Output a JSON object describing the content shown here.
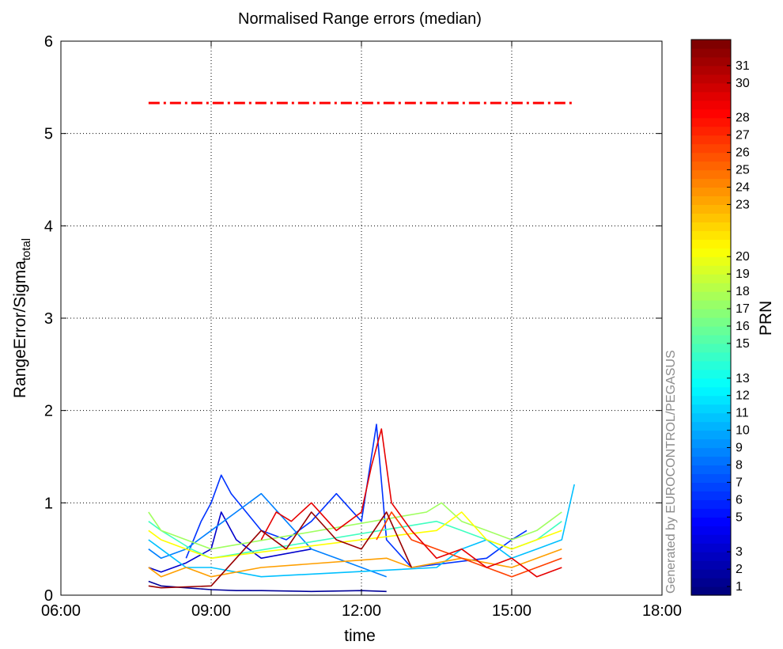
{
  "chart_data": {
    "type": "line",
    "title": "Normalised Range errors (median)",
    "xlabel": "time",
    "ylabel": "RangeError/Sigma",
    "ylabel_subscript": "total",
    "x_unit": "hours",
    "xlim": [
      6,
      18
    ],
    "ylim": [
      0,
      6
    ],
    "xticks": [
      6,
      9,
      12,
      15,
      18
    ],
    "xtick_labels": [
      "06:00",
      "09:00",
      "12:00",
      "15:00",
      "18:00"
    ],
    "yticks": [
      0,
      1,
      2,
      3,
      4,
      5,
      6
    ],
    "ytick_labels": [
      "0",
      "1",
      "2",
      "3",
      "4",
      "5",
      "6"
    ],
    "grid": true,
    "threshold_line": {
      "x": [
        7.75,
        16.25
      ],
      "y": 5.33,
      "color": "#ff0000",
      "style": "dash-dot"
    },
    "colorbar": {
      "label": "PRN",
      "colormap": "jet",
      "range": [
        0.5,
        32.5
      ],
      "tick_labels": [
        "1",
        "2",
        "3",
        "5",
        "6",
        "7",
        "8",
        "9",
        "10",
        "11",
        "12",
        "13",
        "15",
        "16",
        "17",
        "18",
        "19",
        "20",
        "23",
        "24",
        "25",
        "26",
        "27",
        "28",
        "30",
        "31"
      ]
    },
    "series": [
      {
        "prn": 1,
        "color": "#000099",
        "points": [
          [
            7.75,
            0.15
          ],
          [
            8.0,
            0.1
          ],
          [
            8.5,
            0.08
          ],
          [
            9.0,
            0.06
          ],
          [
            9.5,
            0.05
          ],
          [
            10.0,
            0.05
          ],
          [
            11.0,
            0.04
          ],
          [
            12.0,
            0.05
          ],
          [
            12.5,
            0.04
          ]
        ]
      },
      {
        "prn": 2,
        "color": "#0000cc",
        "points": [
          [
            7.75,
            0.3
          ],
          [
            8.0,
            0.25
          ],
          [
            8.5,
            0.35
          ],
          [
            9.0,
            0.5
          ],
          [
            9.2,
            0.9
          ],
          [
            9.5,
            0.6
          ],
          [
            10.0,
            0.4
          ],
          [
            11.0,
            0.5
          ]
        ]
      },
      {
        "prn": 5,
        "color": "#0033ff",
        "points": [
          [
            8.5,
            0.4
          ],
          [
            8.8,
            0.8
          ],
          [
            9.0,
            1.0
          ],
          [
            9.2,
            1.3
          ],
          [
            9.4,
            1.1
          ],
          [
            9.7,
            0.9
          ],
          [
            10.0,
            0.7
          ],
          [
            10.5,
            0.6
          ],
          [
            11.0,
            0.8
          ],
          [
            11.5,
            1.1
          ],
          [
            12.0,
            0.8
          ],
          [
            12.3,
            1.85
          ],
          [
            12.5,
            0.6
          ],
          [
            13.0,
            0.3
          ],
          [
            14.5,
            0.4
          ],
          [
            15.0,
            0.6
          ],
          [
            15.3,
            0.7
          ]
        ]
      },
      {
        "prn": 7,
        "color": "#0080ff",
        "points": [
          [
            7.75,
            0.5
          ],
          [
            8.0,
            0.4
          ],
          [
            8.5,
            0.5
          ],
          [
            9.0,
            0.7
          ],
          [
            9.5,
            0.9
          ],
          [
            10.0,
            1.1
          ],
          [
            10.5,
            0.8
          ],
          [
            11.0,
            0.5
          ],
          [
            11.5,
            0.4
          ],
          [
            12.0,
            0.3
          ],
          [
            12.5,
            0.2
          ]
        ]
      },
      {
        "prn": 11,
        "color": "#00c0ff",
        "points": [
          [
            7.75,
            0.6
          ],
          [
            8.0,
            0.5
          ],
          [
            8.5,
            0.3
          ],
          [
            9.0,
            0.3
          ],
          [
            10.0,
            0.2
          ],
          [
            13.5,
            0.3
          ],
          [
            14.0,
            0.5
          ],
          [
            14.5,
            0.6
          ],
          [
            15.0,
            0.4
          ],
          [
            15.5,
            0.5
          ],
          [
            16.0,
            0.6
          ],
          [
            16.25,
            1.2
          ]
        ]
      },
      {
        "prn": 15,
        "color": "#40ffc0",
        "points": [
          [
            7.75,
            0.8
          ],
          [
            8.0,
            0.7
          ],
          [
            8.3,
            0.6
          ],
          [
            8.6,
            0.5
          ],
          [
            9.0,
            0.4
          ],
          [
            13.5,
            0.8
          ],
          [
            14.0,
            0.7
          ],
          [
            14.5,
            0.6
          ],
          [
            15.0,
            0.5
          ],
          [
            15.5,
            0.6
          ],
          [
            16.0,
            0.8
          ]
        ]
      },
      {
        "prn": 18,
        "color": "#a0ff60",
        "points": [
          [
            7.75,
            0.9
          ],
          [
            8.0,
            0.7
          ],
          [
            8.5,
            0.6
          ],
          [
            9.0,
            0.5
          ],
          [
            13.3,
            0.9
          ],
          [
            13.6,
            1.0
          ],
          [
            14.0,
            0.8
          ],
          [
            14.5,
            0.7
          ],
          [
            15.0,
            0.6
          ],
          [
            15.5,
            0.7
          ],
          [
            16.0,
            0.9
          ]
        ]
      },
      {
        "prn": 20,
        "color": "#ffff00",
        "points": [
          [
            7.75,
            0.7
          ],
          [
            8.0,
            0.6
          ],
          [
            8.5,
            0.5
          ],
          [
            9.0,
            0.4
          ],
          [
            13.5,
            0.7
          ],
          [
            14.0,
            0.9
          ],
          [
            14.5,
            0.6
          ],
          [
            15.0,
            0.5
          ],
          [
            16.0,
            0.7
          ]
        ]
      },
      {
        "prn": 24,
        "color": "#ff9f00",
        "points": [
          [
            7.75,
            0.3
          ],
          [
            8.0,
            0.2
          ],
          [
            8.5,
            0.3
          ],
          [
            9.0,
            0.2
          ],
          [
            10.0,
            0.3
          ],
          [
            12.5,
            0.4
          ],
          [
            13.0,
            0.3
          ],
          [
            14.0,
            0.4
          ],
          [
            15.0,
            0.3
          ],
          [
            16.0,
            0.5
          ]
        ]
      },
      {
        "prn": 27,
        "color": "#ff4000",
        "points": [
          [
            12.3,
            0.6
          ],
          [
            12.6,
            0.9
          ],
          [
            13.0,
            0.6
          ],
          [
            13.5,
            0.5
          ],
          [
            14.0,
            0.4
          ],
          [
            14.5,
            0.3
          ],
          [
            15.0,
            0.2
          ],
          [
            15.5,
            0.3
          ],
          [
            16.0,
            0.4
          ]
        ]
      },
      {
        "prn": 30,
        "color": "#e60000",
        "points": [
          [
            10.0,
            0.6
          ],
          [
            10.3,
            0.9
          ],
          [
            10.6,
            0.8
          ],
          [
            11.0,
            1.0
          ],
          [
            11.5,
            0.7
          ],
          [
            12.0,
            0.9
          ],
          [
            12.2,
            1.4
          ],
          [
            12.4,
            1.8
          ],
          [
            12.6,
            1.0
          ],
          [
            13.0,
            0.7
          ],
          [
            13.5,
            0.4
          ],
          [
            14.0,
            0.5
          ],
          [
            14.5,
            0.3
          ],
          [
            15.0,
            0.4
          ],
          [
            15.5,
            0.2
          ],
          [
            16.0,
            0.3
          ]
        ]
      },
      {
        "prn": 31,
        "color": "#990000",
        "points": [
          [
            7.75,
            0.1
          ],
          [
            8.0,
            0.08
          ],
          [
            9.0,
            0.1
          ],
          [
            10.0,
            0.7
          ],
          [
            10.5,
            0.5
          ],
          [
            11.0,
            0.9
          ],
          [
            11.5,
            0.6
          ],
          [
            12.0,
            0.5
          ],
          [
            12.5,
            0.9
          ],
          [
            13.0,
            0.3
          ]
        ]
      }
    ]
  },
  "watermark": "Generated by EUROCONTROL/PEGASUS",
  "colorbar_label": "PRN"
}
